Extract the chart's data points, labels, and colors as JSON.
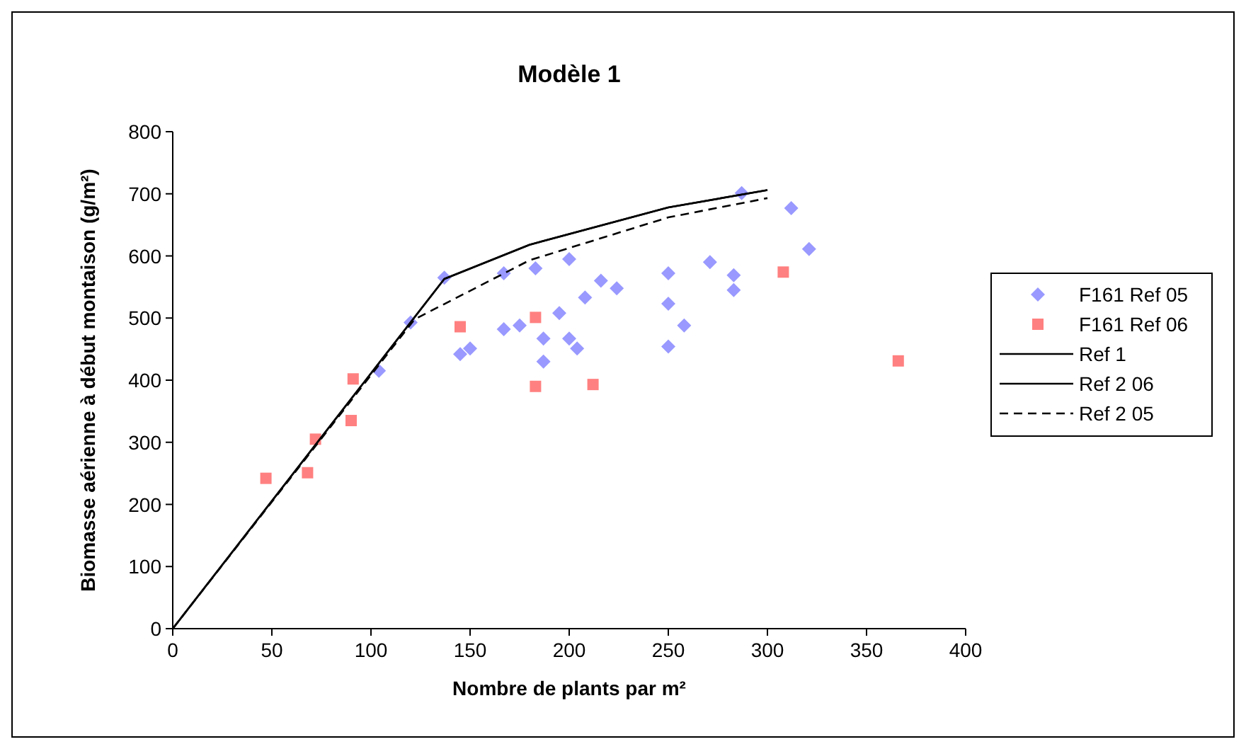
{
  "chart_data": {
    "type": "scatter",
    "title": "Modèle 1",
    "xlabel": "Nombre de plants par m²",
    "ylabel": "Biomasse aérienne à début montaison (g/m²)",
    "xlim": [
      0,
      400
    ],
    "xticks": [
      0,
      50,
      100,
      150,
      200,
      250,
      300,
      350,
      400
    ],
    "ylim": [
      0,
      800
    ],
    "yticks": [
      0,
      100,
      200,
      300,
      400,
      500,
      600,
      700,
      800
    ],
    "grid": false,
    "legend": "right",
    "series": [
      {
        "name": "F161 Ref 05",
        "marker": "diamond",
        "color": "#9999ff",
        "x": [
          137,
          104,
          120,
          167,
          183,
          200,
          216,
          224,
          250,
          250,
          258,
          250,
          208,
          195,
          167,
          175,
          187,
          200,
          204,
          187,
          145,
          150,
          287,
          312,
          321,
          271,
          283,
          283
        ],
        "values": [
          565,
          415,
          493,
          572,
          580,
          595,
          560,
          548,
          572,
          523,
          488,
          454,
          533,
          508,
          482,
          488,
          467,
          467,
          451,
          430,
          442,
          451,
          701,
          677,
          611,
          590,
          569,
          545
        ]
      },
      {
        "name": "F161 Ref 06",
        "marker": "square",
        "color": "#ff8080",
        "x": [
          145,
          183,
          183,
          212,
          308,
          366,
          47,
          68,
          72,
          90,
          91
        ],
        "values": [
          486,
          501,
          390,
          393,
          574,
          431,
          242,
          251,
          305,
          335,
          402
        ]
      },
      {
        "name": "Ref 1",
        "type": "line",
        "line_style": "solid",
        "color": "#000000",
        "x": [
          0,
          137,
          180,
          250,
          300
        ],
        "values": [
          0,
          563,
          618,
          678,
          706
        ]
      },
      {
        "name": "Ref 2 06",
        "type": "line",
        "line_style": "solid",
        "color": "#000000",
        "x": [
          0,
          137,
          180,
          250,
          300
        ],
        "values": [
          0,
          563,
          618,
          678,
          706
        ]
      },
      {
        "name": "Ref 2 05",
        "type": "line",
        "line_style": "dashed",
        "color": "#000000",
        "x": [
          0,
          122,
          180,
          250,
          300
        ],
        "values": [
          0,
          498,
          593,
          662,
          693
        ]
      }
    ]
  }
}
